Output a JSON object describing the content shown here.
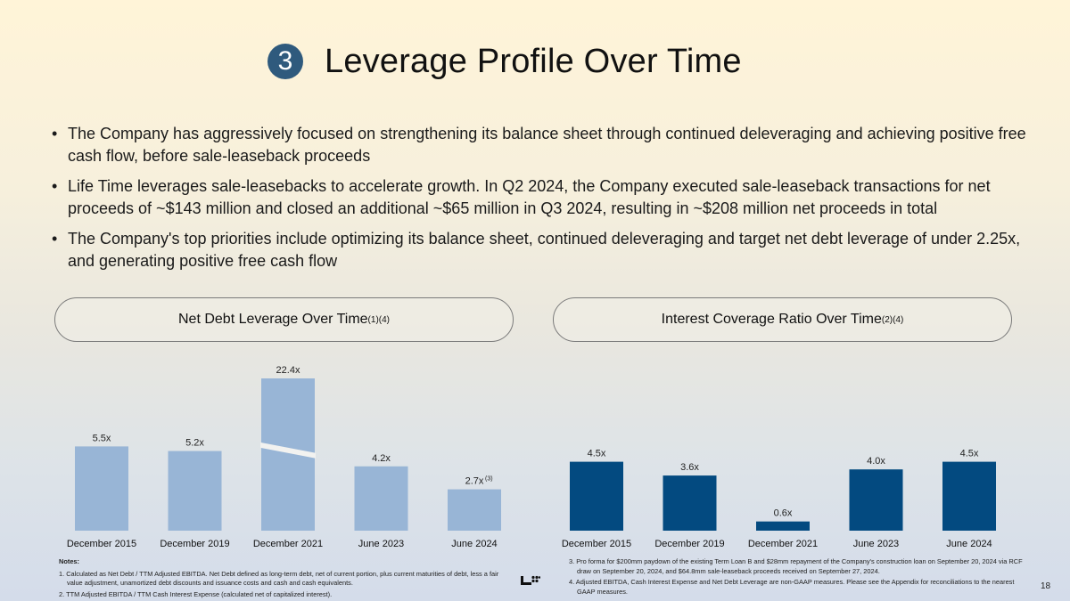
{
  "header": {
    "section_number": "3",
    "title": "Leverage Profile Over Time"
  },
  "bullets": [
    "The Company has aggressively focused on strengthening its balance sheet through continued deleveraging and achieving positive free cash flow, before sale-leaseback proceeds",
    "Life Time leverages sale-leasebacks to accelerate growth. In Q2 2024, the Company executed sale-leaseback transactions for net proceeds of ~$143 million and closed an additional ~$65 million in Q3 2024, resulting in ~$208 million net proceeds in total",
    "The Company's top priorities include optimizing its balance sheet, continued deleveraging and target net debt leverage of under 2.25x, and generating positive free cash flow"
  ],
  "colors": {
    "badge": "#2f5a7d",
    "left_bars": "#98b5d6",
    "right_bars": "#034a80"
  },
  "chart_data": [
    {
      "type": "bar",
      "title": "Net Debt Leverage Over Time",
      "title_superscript": "(1)(4)",
      "categories": [
        "December 2015",
        "December 2019",
        "December 2021",
        "June 2023",
        "June 2024"
      ],
      "values": [
        5.5,
        5.2,
        22.4,
        4.2,
        2.7
      ],
      "data_labels": [
        "5.5x",
        "5.2x",
        "22.4x",
        "4.2x",
        "2.7x"
      ],
      "data_label_footnotes": [
        "",
        "",
        "",
        "",
        "(3)"
      ],
      "broken_axis_category": "December 2021",
      "xlabel": "",
      "ylabel": "",
      "grid": false,
      "legend": "none"
    },
    {
      "type": "bar",
      "title": "Interest Coverage Ratio Over Time",
      "title_superscript": "(2)(4)",
      "categories": [
        "December 2015",
        "December 2019",
        "December 2021",
        "June 2023",
        "June 2024"
      ],
      "values": [
        4.5,
        3.6,
        0.6,
        4.0,
        4.5
      ],
      "data_labels": [
        "4.5x",
        "3.6x",
        "0.6x",
        "4.0x",
        "4.5x"
      ],
      "data_label_footnotes": [
        "",
        "",
        "",
        "",
        ""
      ],
      "xlabel": "",
      "ylabel": "",
      "grid": false,
      "legend": "none"
    }
  ],
  "notes": {
    "heading": "Notes:",
    "items": [
      "1. Calculated as Net Debt / TTM Adjusted EBITDA. Net Debt defined as long-term debt, net of current portion, plus current maturities of debt, less a fair value adjustment, unamortized debt discounts and issuance costs and cash and cash equivalents.",
      "2. TTM Adjusted EBITDA / TTM Cash Interest Expense (calculated net of capitalized interest).",
      "3.  Pro forma for $200mm paydown of the existing Term Loan B and $28mm repayment of the Company's construction loan on September 20, 2024 via RCF draw on September 20, 2024, and $64.8mm sale-leaseback proceeds received on September 27, 2024.",
      "4. Adjusted EBITDA, Cash Interest Expense and Net Debt Leverage are non-GAAP measures. Please see the Appendix for reconciliations to the nearest GAAP measures."
    ]
  },
  "footer": {
    "logo": "life-time-logo",
    "page_number": "18"
  }
}
